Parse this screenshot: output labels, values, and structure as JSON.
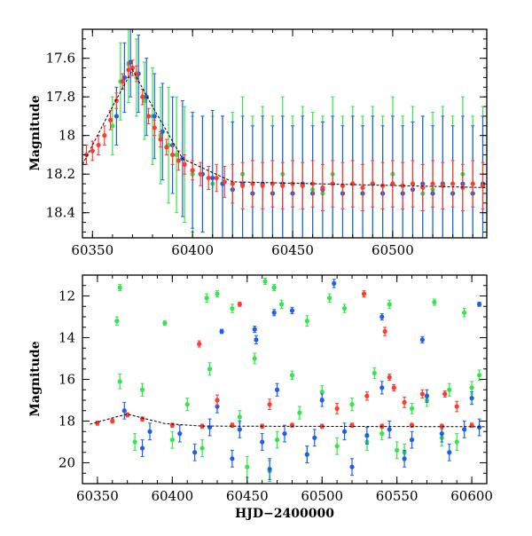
{
  "colors": {
    "red": "#ff3b30",
    "green": "#33e64a",
    "blue": "#1f5fe8",
    "trend": "#000000"
  },
  "chart_data": [
    {
      "type": "scatter",
      "xlabel": "",
      "ylabel": "Magnitude",
      "xlim": [
        60345,
        60547
      ],
      "ylim": [
        18.53,
        17.45
      ],
      "y_inverted": true,
      "grid": false,
      "xticks": [
        60350,
        60400,
        60450,
        60500
      ],
      "xtick_labels": [
        "60350",
        "60400",
        "60450",
        "60500"
      ],
      "yticks": [
        17.6,
        17.8,
        18,
        18.2,
        18.4
      ],
      "ytick_labels": [
        "17.6",
        "17.8",
        "18",
        "18.2",
        "18.4"
      ],
      "series": [
        {
          "color": "green",
          "x": [
            60360,
            60364,
            60368,
            60372,
            60376,
            60380,
            60384,
            60388,
            60392,
            60396,
            60400,
            60405,
            60410,
            60415,
            60420,
            60425,
            60430,
            60435,
            60440,
            60445,
            60450,
            60455,
            60460,
            60465,
            60470,
            60475,
            60480,
            60485,
            60490,
            60495,
            60500,
            60505,
            60510,
            60515,
            60520,
            60525,
            60530,
            60535,
            60540,
            60545
          ],
          "y": [
            17.95,
            17.72,
            17.63,
            17.7,
            17.82,
            17.9,
            18.0,
            18.05,
            18.1,
            18.15,
            18.2,
            18.2,
            18.25,
            18.25,
            18.28,
            18.2,
            18.3,
            18.25,
            18.3,
            18.2,
            18.3,
            18.25,
            18.28,
            18.3,
            18.2,
            18.3,
            18.25,
            18.3,
            18.25,
            18.3,
            18.2,
            18.3,
            18.25,
            18.3,
            18.28,
            18.25,
            18.3,
            18.2,
            18.3,
            18.25
          ],
          "err": [
            0.15,
            0.2,
            0.2,
            0.2,
            0.2,
            0.25,
            0.25,
            0.3,
            0.3,
            0.3,
            0.3,
            0.3,
            0.35,
            0.35,
            0.4,
            0.4,
            0.4,
            0.4,
            0.4,
            0.4,
            0.4,
            0.4,
            0.4,
            0.4,
            0.4,
            0.4,
            0.4,
            0.4,
            0.4,
            0.4,
            0.4,
            0.4,
            0.4,
            0.4,
            0.4,
            0.4,
            0.4,
            0.4,
            0.4,
            0.4
          ]
        },
        {
          "color": "blue",
          "x": [
            60362,
            60366,
            60369,
            60373,
            60377,
            60381,
            60385,
            60390,
            60395,
            60400,
            60405,
            60410,
            60415,
            60420,
            60425,
            60430,
            60435,
            60440,
            60445,
            60450,
            60455,
            60460,
            60465,
            60470,
            60475,
            60480,
            60485,
            60490,
            60495,
            60500,
            60505,
            60510,
            60515,
            60520,
            60525,
            60530,
            60535,
            60540,
            60545
          ],
          "y": [
            17.9,
            17.7,
            17.62,
            17.68,
            17.8,
            17.9,
            17.98,
            18.05,
            18.12,
            18.18,
            18.2,
            18.22,
            18.25,
            18.28,
            18.25,
            18.3,
            18.25,
            18.3,
            18.25,
            18.3,
            18.25,
            18.3,
            18.28,
            18.25,
            18.3,
            18.25,
            18.3,
            18.25,
            18.3,
            18.25,
            18.3,
            18.28,
            18.25,
            18.3,
            18.25,
            18.3,
            18.25,
            18.3,
            18.25
          ],
          "err": [
            0.15,
            0.18,
            0.18,
            0.2,
            0.2,
            0.22,
            0.25,
            0.25,
            0.3,
            0.3,
            0.3,
            0.35,
            0.35,
            0.35,
            0.35,
            0.35,
            0.35,
            0.35,
            0.35,
            0.35,
            0.35,
            0.35,
            0.35,
            0.35,
            0.35,
            0.35,
            0.35,
            0.35,
            0.35,
            0.35,
            0.35,
            0.35,
            0.35,
            0.35,
            0.35,
            0.35,
            0.35,
            0.35,
            0.35
          ]
        },
        {
          "color": "red",
          "x": [
            60347,
            60350,
            60353,
            60356,
            60359,
            60362,
            60365,
            60368,
            60370,
            60372,
            60375,
            60378,
            60381,
            60384,
            60387,
            60390,
            60393,
            60396,
            60400,
            60404,
            60408,
            60412,
            60416,
            60420,
            60425,
            60430,
            60435,
            60440,
            60445,
            60450,
            60455,
            60460,
            60465,
            60470,
            60475,
            60480,
            60485,
            60490,
            60495,
            60500,
            60505,
            60510,
            60515,
            60520,
            60525,
            60530,
            60535,
            60540,
            60545
          ],
          "y": [
            18.1,
            18.08,
            18.05,
            18.0,
            17.92,
            17.82,
            17.72,
            17.66,
            17.65,
            17.68,
            17.8,
            17.9,
            17.96,
            18.02,
            18.06,
            18.1,
            18.13,
            18.15,
            18.18,
            18.2,
            18.22,
            18.22,
            18.24,
            18.25,
            18.26,
            18.25,
            18.26,
            18.25,
            18.26,
            18.25,
            18.26,
            18.25,
            18.27,
            18.25,
            18.26,
            18.25,
            18.27,
            18.25,
            18.26,
            18.25,
            18.26,
            18.25,
            18.27,
            18.25,
            18.26,
            18.25,
            18.27,
            18.25,
            18.26
          ],
          "err": [
            0.05,
            0.05,
            0.05,
            0.05,
            0.05,
            0.04,
            0.04,
            0.04,
            0.04,
            0.04,
            0.04,
            0.04,
            0.04,
            0.04,
            0.04,
            0.05,
            0.05,
            0.05,
            0.05,
            0.06,
            0.06,
            0.07,
            0.08,
            0.1,
            0.12,
            0.12,
            0.12,
            0.12,
            0.12,
            0.12,
            0.12,
            0.12,
            0.12,
            0.12,
            0.12,
            0.12,
            0.12,
            0.12,
            0.12,
            0.12,
            0.12,
            0.12,
            0.12,
            0.12,
            0.12,
            0.12,
            0.12,
            0.12,
            0.12
          ]
        }
      ],
      "trend_line": {
        "color": "trend",
        "x": [
          60345,
          60360,
          60370,
          60380,
          60395,
          60420,
          60547
        ],
        "y": [
          18.15,
          17.85,
          17.66,
          17.85,
          18.12,
          18.24,
          18.27
        ]
      }
    },
    {
      "type": "scatter",
      "xlabel": "HJD−2400000",
      "ylabel": "Magnitude",
      "xlim": [
        60340,
        60610
      ],
      "ylim": [
        21.0,
        11.0
      ],
      "y_inverted": true,
      "grid": false,
      "xticks": [
        60350,
        60400,
        60450,
        60500,
        60550,
        60600
      ],
      "xtick_labels": [
        "60350",
        "60400",
        "60450",
        "60500",
        "60550",
        "60600"
      ],
      "yticks": [
        12,
        14,
        16,
        18,
        20
      ],
      "ytick_labels": [
        "12",
        "14",
        "16",
        "18",
        "20"
      ],
      "series": [
        {
          "color": "green",
          "x": [
            60365,
            60363,
            60395,
            60423,
            60430,
            60440,
            60455,
            60462,
            60468,
            60473,
            60480,
            60490,
            60505,
            60515,
            60535,
            60545,
            60560,
            60575,
            60595,
            60605,
            60365,
            60380,
            60410,
            60425,
            60445,
            60470,
            60485,
            60500,
            60520,
            60540,
            60555,
            60570,
            60585,
            60600,
            60375,
            60400,
            60420,
            60450,
            60465,
            60490,
            60510,
            60530,
            60550,
            60580,
            60590
          ],
          "y": [
            11.6,
            13.2,
            13.3,
            12.1,
            11.9,
            12.6,
            15.0,
            11.3,
            11.6,
            12.4,
            15.8,
            13.2,
            12.1,
            12.6,
            15.7,
            12.4,
            17.4,
            12.3,
            12.8,
            15.8,
            16.1,
            16.5,
            17.2,
            15.5,
            17.8,
            18.9,
            17.6,
            16.6,
            17.2,
            18.6,
            19.5,
            17.0,
            16.5,
            16.4,
            19.0,
            18.9,
            19.3,
            20.2,
            20.4,
            19.6,
            19.2,
            19.0,
            19.4,
            18.8,
            19.0
          ],
          "err": [
            0.15,
            0.2,
            0.1,
            0.2,
            0.15,
            0.2,
            0.25,
            0.15,
            0.15,
            0.2,
            0.2,
            0.25,
            0.2,
            0.2,
            0.25,
            0.2,
            0.25,
            0.15,
            0.2,
            0.25,
            0.35,
            0.3,
            0.3,
            0.3,
            0.3,
            0.4,
            0.3,
            0.3,
            0.3,
            0.3,
            0.4,
            0.3,
            0.3,
            0.3,
            0.4,
            0.4,
            0.4,
            0.5,
            0.5,
            0.4,
            0.4,
            0.4,
            0.4,
            0.4,
            0.4
          ]
        },
        {
          "color": "blue",
          "x": [
            60433,
            60455,
            60456,
            60468,
            60480,
            60508,
            60540,
            60567,
            60605,
            60430,
            60470,
            60500,
            60540,
            60570,
            60600,
            60368,
            60385,
            60405,
            60425,
            60445,
            60460,
            60475,
            60495,
            60515,
            60530,
            60545,
            60560,
            60580,
            60595,
            60605,
            60380,
            60415,
            60440,
            60465,
            60490,
            60520,
            60555,
            60585
          ],
          "y": [
            13.7,
            13.6,
            14.1,
            12.8,
            12.7,
            11.4,
            13.0,
            14.1,
            12.4,
            17.3,
            16.5,
            17.0,
            16.4,
            16.8,
            16.9,
            17.5,
            18.5,
            18.6,
            18.3,
            18.4,
            19.0,
            18.6,
            18.8,
            18.5,
            18.7,
            18.4,
            18.9,
            18.6,
            18.4,
            18.3,
            19.3,
            19.5,
            19.8,
            20.3,
            19.6,
            20.2,
            19.8,
            19.5
          ],
          "err": [
            0.1,
            0.15,
            0.2,
            0.15,
            0.15,
            0.2,
            0.15,
            0.15,
            0.1,
            0.3,
            0.3,
            0.3,
            0.3,
            0.3,
            0.3,
            0.4,
            0.4,
            0.4,
            0.4,
            0.4,
            0.4,
            0.4,
            0.4,
            0.4,
            0.4,
            0.4,
            0.4,
            0.4,
            0.4,
            0.4,
            0.4,
            0.4,
            0.4,
            0.5,
            0.4,
            0.4,
            0.4,
            0.4
          ]
        },
        {
          "color": "red",
          "x": [
            60445,
            60418,
            60528,
            60542,
            60530,
            60545,
            60548,
            60567,
            60582,
            60430,
            60465,
            60510,
            60555,
            60590,
            60350,
            60360,
            60370,
            60380,
            60400,
            60420,
            60440,
            60460,
            60480,
            60500,
            60520,
            60540,
            60560,
            60580,
            60600
          ],
          "y": [
            12.4,
            14.3,
            11.9,
            13.7,
            16.8,
            15.9,
            16.4,
            16.7,
            16.7,
            17.0,
            17.2,
            17.4,
            17.1,
            17.3,
            18.1,
            18.0,
            17.7,
            17.9,
            18.2,
            18.25,
            18.2,
            18.25,
            18.2,
            18.25,
            18.2,
            18.25,
            18.2,
            18.25,
            18.2
          ],
          "err": [
            0.1,
            0.15,
            0.15,
            0.2,
            0.2,
            0.15,
            0.15,
            0.2,
            0.15,
            0.25,
            0.25,
            0.25,
            0.25,
            0.25,
            0.1,
            0.1,
            0.1,
            0.1,
            0.1,
            0.1,
            0.1,
            0.1,
            0.1,
            0.1,
            0.1,
            0.1,
            0.1,
            0.1,
            0.1
          ]
        }
      ],
      "trend_line": {
        "color": "trend",
        "x": [
          60345,
          60360,
          60370,
          60380,
          60395,
          60420,
          60610
        ],
        "y": [
          18.15,
          17.85,
          17.66,
          17.85,
          18.12,
          18.24,
          18.27
        ]
      }
    }
  ]
}
